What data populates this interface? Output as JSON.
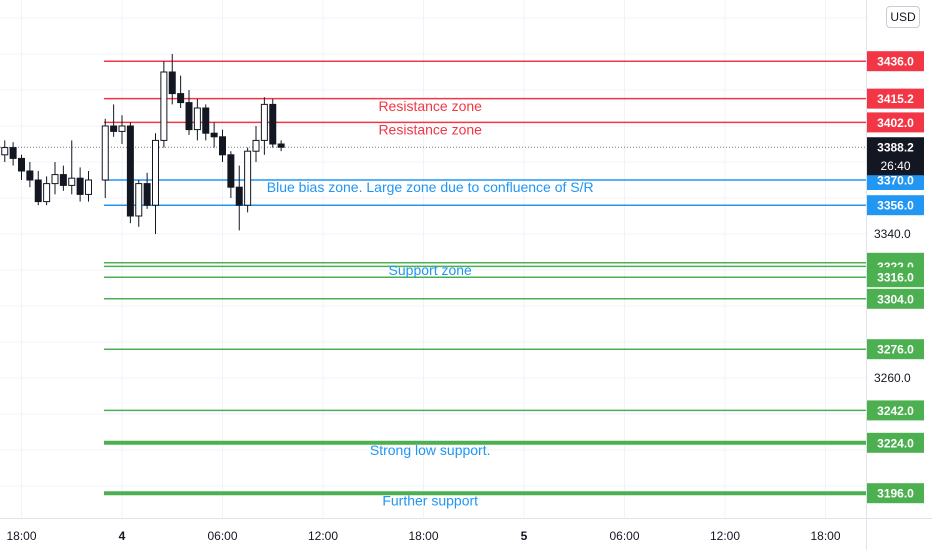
{
  "chart_data": {
    "type": "candlestick",
    "currency": "USD",
    "last_price": "3388.2",
    "countdown": "26:40",
    "price_axis_ticks": [
      "3340.0",
      "3260.0"
    ],
    "time_ticks": [
      {
        "label": "18:00",
        "hour": -6,
        "bold": false
      },
      {
        "label": "4",
        "hour": 0,
        "bold": true
      },
      {
        "label": "06:00",
        "hour": 6,
        "bold": false
      },
      {
        "label": "12:00",
        "hour": 12,
        "bold": false
      },
      {
        "label": "18:00",
        "hour": 18,
        "bold": false
      },
      {
        "label": "5",
        "hour": 24,
        "bold": true
      },
      {
        "label": "06:00",
        "hour": 30,
        "bold": false
      },
      {
        "label": "12:00",
        "hour": 36,
        "bold": false
      },
      {
        "label": "18:00",
        "hour": 42,
        "bold": false
      }
    ],
    "levels": [
      {
        "price": 3436.0,
        "label": "3436.0",
        "color": "#f23645",
        "weight": 1.5
      },
      {
        "price": 3415.2,
        "label": "3415.2",
        "color": "#f23645",
        "weight": 1.5
      },
      {
        "price": 3402.0,
        "label": "3402.0",
        "color": "#f23645",
        "weight": 1.5
      },
      {
        "price": 3370.0,
        "label": "3370.0",
        "color": "#2196f3",
        "weight": 1.5
      },
      {
        "price": 3356.0,
        "label": "3356.0",
        "color": "#2196f3",
        "weight": 1.5
      },
      {
        "price": 3324.0,
        "label": "3324.0",
        "color": "#4caf50",
        "weight": 1.5
      },
      {
        "price": 3322.0,
        "label": "3322.0",
        "color": "#4caf50",
        "weight": 1.5
      },
      {
        "price": 3316.0,
        "label": "3316.0",
        "color": "#4caf50",
        "weight": 1.5
      },
      {
        "price": 3304.0,
        "label": "3304.0",
        "color": "#4caf50",
        "weight": 1.5
      },
      {
        "price": 3276.0,
        "label": "3276.0",
        "color": "#4caf50",
        "weight": 1.5
      },
      {
        "price": 3242.0,
        "label": "3242.0",
        "color": "#4caf50",
        "weight": 1.5
      },
      {
        "price": 3224.0,
        "label": "3224.0",
        "color": "#4caf50",
        "weight": 4
      },
      {
        "price": 3196.0,
        "label": "3196.0",
        "color": "#4caf50",
        "weight": 4
      }
    ],
    "annotations": [
      {
        "text": "Resistance zone",
        "price": 3411,
        "hour": 18.4,
        "color": "#f23645"
      },
      {
        "text": "Resistance zone",
        "price": 3398,
        "hour": 18.4,
        "color": "#f23645"
      },
      {
        "text": "Blue bias zone. Large zone due to confluence of S/R",
        "price": 3366,
        "hour": 18.4,
        "color": "#2196f3"
      },
      {
        "text": "Support zone",
        "price": 3320,
        "hour": 18.4,
        "color": "#2196f3"
      },
      {
        "text": "Strong low support.",
        "price": 3220,
        "hour": 18.4,
        "color": "#2196f3"
      },
      {
        "text": "Further support",
        "price": 3192,
        "hour": 18.4,
        "color": "#2196f3"
      }
    ],
    "candles": [
      {
        "hour": -7.0,
        "open": 3384,
        "high": 3392,
        "low": 3380,
        "close": 3388
      },
      {
        "hour": -6.5,
        "open": 3388,
        "high": 3391,
        "low": 3378,
        "close": 3382
      },
      {
        "hour": -6.0,
        "open": 3382,
        "high": 3384,
        "low": 3370,
        "close": 3375
      },
      {
        "hour": -5.5,
        "open": 3375,
        "high": 3380,
        "low": 3366,
        "close": 3370
      },
      {
        "hour": -5.0,
        "open": 3370,
        "high": 3375,
        "low": 3356,
        "close": 3358
      },
      {
        "hour": -4.5,
        "open": 3358,
        "high": 3372,
        "low": 3356,
        "close": 3368
      },
      {
        "hour": -4.0,
        "open": 3368,
        "high": 3380,
        "low": 3362,
        "close": 3373
      },
      {
        "hour": -3.5,
        "open": 3373,
        "high": 3378,
        "low": 3364,
        "close": 3367
      },
      {
        "hour": -3.0,
        "open": 3367,
        "high": 3392,
        "low": 3362,
        "close": 3371
      },
      {
        "hour": -2.5,
        "open": 3371,
        "high": 3377,
        "low": 3358,
        "close": 3362
      },
      {
        "hour": -2.0,
        "open": 3362,
        "high": 3375,
        "low": 3358,
        "close": 3370
      },
      {
        "hour": -1.0,
        "open": 3370,
        "high": 3404,
        "low": 3360,
        "close": 3400
      },
      {
        "hour": -0.5,
        "open": 3400,
        "high": 3412,
        "low": 3394,
        "close": 3397
      },
      {
        "hour": 0.0,
        "open": 3397,
        "high": 3406,
        "low": 3390,
        "close": 3400
      },
      {
        "hour": 0.5,
        "open": 3400,
        "high": 3402,
        "low": 3346,
        "close": 3350
      },
      {
        "hour": 1.0,
        "open": 3350,
        "high": 3370,
        "low": 3344,
        "close": 3368
      },
      {
        "hour": 1.5,
        "open": 3368,
        "high": 3374,
        "low": 3354,
        "close": 3356
      },
      {
        "hour": 2.0,
        "open": 3356,
        "high": 3396,
        "low": 3340,
        "close": 3392
      },
      {
        "hour": 2.5,
        "open": 3392,
        "high": 3436,
        "low": 3388,
        "close": 3430
      },
      {
        "hour": 3.0,
        "open": 3430,
        "high": 3440,
        "low": 3412,
        "close": 3418
      },
      {
        "hour": 3.5,
        "open": 3418,
        "high": 3428,
        "low": 3410,
        "close": 3413
      },
      {
        "hour": 4.0,
        "open": 3413,
        "high": 3420,
        "low": 3395,
        "close": 3398
      },
      {
        "hour": 4.5,
        "open": 3398,
        "high": 3415,
        "low": 3392,
        "close": 3410
      },
      {
        "hour": 5.0,
        "open": 3410,
        "high": 3412,
        "low": 3392,
        "close": 3396
      },
      {
        "hour": 5.5,
        "open": 3396,
        "high": 3402,
        "low": 3388,
        "close": 3394
      },
      {
        "hour": 6.0,
        "open": 3394,
        "high": 3398,
        "low": 3380,
        "close": 3384
      },
      {
        "hour": 6.5,
        "open": 3384,
        "high": 3386,
        "low": 3360,
        "close": 3366
      },
      {
        "hour": 7.0,
        "open": 3366,
        "high": 3378,
        "low": 3342,
        "close": 3356
      },
      {
        "hour": 7.5,
        "open": 3356,
        "high": 3388,
        "low": 3352,
        "close": 3386
      },
      {
        "hour": 8.0,
        "open": 3386,
        "high": 3400,
        "low": 3380,
        "close": 3392
      },
      {
        "hour": 8.5,
        "open": 3392,
        "high": 3416,
        "low": 3384,
        "close": 3412
      },
      {
        "hour": 9.0,
        "open": 3412,
        "high": 3415,
        "low": 3388,
        "close": 3390
      },
      {
        "hour": 9.5,
        "open": 3390,
        "high": 3392,
        "low": 3386,
        "close": 3388.2
      }
    ]
  }
}
